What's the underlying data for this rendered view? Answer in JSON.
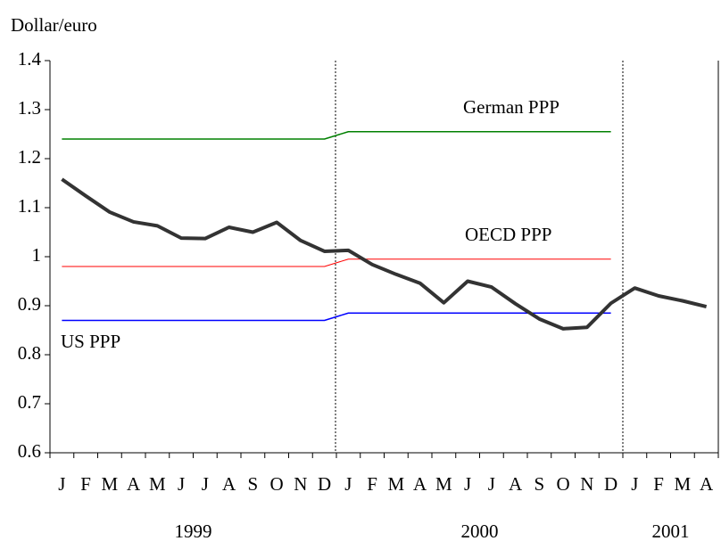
{
  "chart_data": {
    "type": "line",
    "y_axis_label": "Dollar/euro",
    "categories": [
      "J",
      "F",
      "M",
      "A",
      "M",
      "J",
      "J",
      "A",
      "S",
      "O",
      "N",
      "D",
      "J",
      "F",
      "M",
      "A",
      "M",
      "J",
      "J",
      "A",
      "S",
      "O",
      "N",
      "D",
      "J",
      "F",
      "M",
      "A"
    ],
    "x_groups": [
      "1999",
      "2000",
      "2001"
    ],
    "ylim": [
      0.6,
      1.4
    ],
    "yticks": [
      0.6,
      0.7,
      0.8,
      0.9,
      1,
      1.1,
      1.2,
      1.3,
      1.4
    ],
    "series": [
      {
        "name": "German PPP",
        "color": "#008000",
        "values": [
          1.24,
          1.24,
          1.24,
          1.24,
          1.24,
          1.24,
          1.24,
          1.24,
          1.24,
          1.24,
          1.24,
          1.24,
          1.255,
          1.255,
          1.255,
          1.255,
          1.255,
          1.255,
          1.255,
          1.255,
          1.255,
          1.255,
          1.255,
          1.255,
          null,
          null,
          null,
          null
        ]
      },
      {
        "name": "OECD PPP",
        "color": "#ff0000",
        "values": [
          0.98,
          0.98,
          0.98,
          0.98,
          0.98,
          0.98,
          0.98,
          0.98,
          0.98,
          0.98,
          0.98,
          0.98,
          0.995,
          0.995,
          0.995,
          0.995,
          0.995,
          0.995,
          0.995,
          0.995,
          0.995,
          0.995,
          0.995,
          0.995,
          null,
          null,
          null,
          null
        ]
      },
      {
        "name": "US PPP",
        "color": "#0000ff",
        "values": [
          0.87,
          0.87,
          0.87,
          0.87,
          0.87,
          0.87,
          0.87,
          0.87,
          0.87,
          0.87,
          0.87,
          0.87,
          0.885,
          0.885,
          0.885,
          0.885,
          0.885,
          0.885,
          0.885,
          0.885,
          0.885,
          0.885,
          0.885,
          0.885,
          null,
          null,
          null,
          null
        ]
      },
      {
        "color": "#333333",
        "values": [
          1.158,
          1.124,
          1.091,
          1.071,
          1.063,
          1.038,
          1.037,
          1.06,
          1.05,
          1.07,
          1.033,
          1.011,
          1.013,
          0.984,
          0.964,
          0.946,
          0.906,
          0.95,
          0.938,
          0.904,
          0.873,
          0.853,
          0.856,
          0.905,
          0.936,
          0.92,
          0.91,
          0.898
        ]
      }
    ]
  }
}
